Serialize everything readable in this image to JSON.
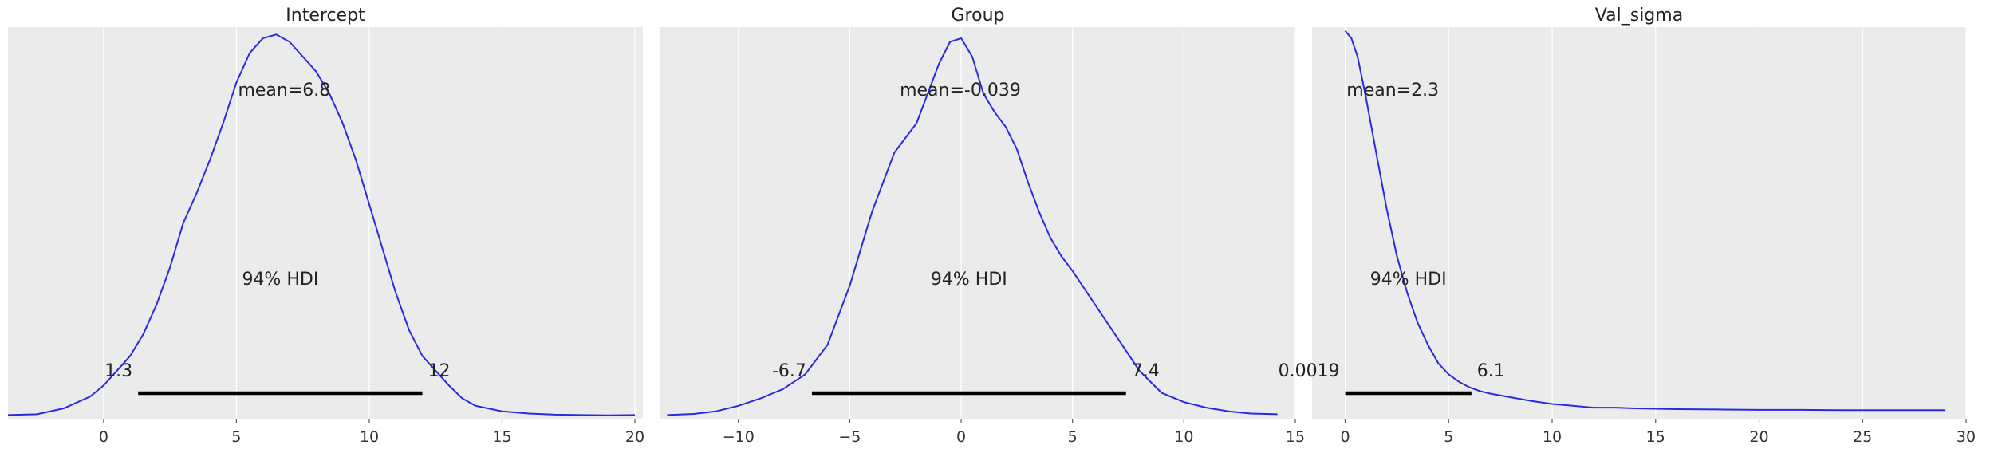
{
  "colors": {
    "panel_background": "#ebebeb",
    "grid": "#ffffff",
    "density_line": "#2a2ae0",
    "hdi_bar": "#000000",
    "text": "#222222"
  },
  "chart_data": [
    {
      "type": "line",
      "title": "Intercept",
      "xlim": [
        -3.6,
        20.3
      ],
      "ylim": [
        0,
        1.06
      ],
      "xticks": [
        0,
        5,
        10,
        15,
        20
      ],
      "grid": true,
      "density": {
        "x": [
          -3.6,
          -2.5,
          -1.5,
          -0.5,
          0,
          0.5,
          1,
          1.5,
          2,
          2.5,
          3,
          3.5,
          4,
          4.5,
          5,
          5.5,
          6,
          6.5,
          7,
          7.5,
          8,
          8.5,
          9,
          9.5,
          10,
          10.5,
          11,
          11.5,
          12,
          12.5,
          13,
          13.5,
          14,
          15,
          16,
          17,
          18,
          19,
          20
        ],
        "y": [
          0.01,
          0.012,
          0.028,
          0.06,
          0.09,
          0.13,
          0.17,
          0.23,
          0.31,
          0.41,
          0.53,
          0.61,
          0.7,
          0.8,
          0.91,
          0.99,
          1.03,
          1.04,
          1.02,
          0.98,
          0.94,
          0.88,
          0.8,
          0.7,
          0.58,
          0.46,
          0.34,
          0.24,
          0.17,
          0.13,
          0.09,
          0.055,
          0.035,
          0.02,
          0.014,
          0.011,
          0.01,
          0.009,
          0.01
        ]
      },
      "mean": 6.8,
      "mean_label": "mean=6.8",
      "hdi": [
        1.3,
        12
      ],
      "hdi_label": "94% HDI",
      "hdi_low_label": "1.3",
      "hdi_high_label": "12"
    },
    {
      "type": "line",
      "title": "Group",
      "xlim": [
        -13.5,
        15.0
      ],
      "ylim": [
        0,
        1.06
      ],
      "xticks": [
        -10,
        -5,
        0,
        5,
        10,
        15
      ],
      "xtick_labels": [
        "−10",
        "−5",
        "0",
        "5",
        "10",
        "15"
      ],
      "grid": true,
      "density": {
        "x": [
          -13.2,
          -12,
          -11,
          -10,
          -9,
          -8,
          -7,
          -6,
          -5,
          -4,
          -3,
          -2.5,
          -2,
          -1.5,
          -1,
          -0.5,
          0,
          0.5,
          1,
          1.5,
          2,
          2.5,
          3,
          3.5,
          4,
          4.5,
          5,
          6,
          7,
          8,
          9,
          10,
          11,
          12,
          13,
          14.2
        ],
        "y": [
          0.01,
          0.013,
          0.02,
          0.035,
          0.055,
          0.08,
          0.12,
          0.2,
          0.36,
          0.56,
          0.72,
          0.76,
          0.8,
          0.88,
          0.96,
          1.02,
          1.03,
          0.98,
          0.88,
          0.83,
          0.79,
          0.73,
          0.64,
          0.56,
          0.49,
          0.44,
          0.4,
          0.31,
          0.22,
          0.13,
          0.07,
          0.045,
          0.03,
          0.02,
          0.014,
          0.012
        ]
      },
      "mean": -0.039,
      "mean_label": "mean=-0.039",
      "hdi": [
        -6.7,
        7.4
      ],
      "hdi_label": "94% HDI",
      "hdi_low_label": "-6.7",
      "hdi_high_label": "7.4"
    },
    {
      "type": "line",
      "title": "Val_sigma",
      "xlim": [
        -1.6,
        30.0
      ],
      "ylim": [
        0,
        1.06
      ],
      "xticks": [
        0,
        5,
        10,
        15,
        20,
        25,
        30
      ],
      "grid": true,
      "density": {
        "x": [
          0,
          0.3,
          0.6,
          1,
          1.5,
          2,
          2.5,
          3,
          3.5,
          4,
          4.5,
          5,
          5.5,
          6,
          6.5,
          7,
          8,
          9,
          10,
          11,
          12,
          13,
          14,
          15,
          16,
          18,
          20,
          22,
          24,
          26,
          28,
          29
        ],
        "y": [
          1.05,
          1.03,
          0.98,
          0.87,
          0.72,
          0.57,
          0.44,
          0.34,
          0.26,
          0.2,
          0.15,
          0.12,
          0.1,
          0.085,
          0.075,
          0.068,
          0.058,
          0.048,
          0.04,
          0.035,
          0.03,
          0.03,
          0.028,
          0.027,
          0.026,
          0.025,
          0.024,
          0.024,
          0.023,
          0.023,
          0.023,
          0.023
        ]
      },
      "mean": 2.3,
      "mean_label": "mean=2.3",
      "hdi": [
        0.0019,
        6.1
      ],
      "hdi_label": "94% HDI",
      "hdi_low_label": "0.0019",
      "hdi_high_label": "6.1"
    }
  ]
}
